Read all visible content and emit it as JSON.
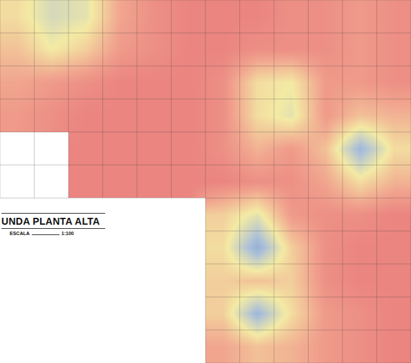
{
  "chart_data": {
    "type": "heatmap",
    "title": "UNDA PLANTA ALTA",
    "annotations": [
      "ESCALA",
      "1:100"
    ],
    "zlim": [
      0,
      100
    ],
    "colors": [
      "#e66f76",
      "#f1a58f",
      "#f3eaa4",
      "#a9bfd9",
      "#7f9dc8"
    ],
    "tick_labels": false,
    "cells": [
      [
        45,
        60,
        55,
        25,
        15,
        10,
        10,
        10,
        15,
        15,
        20,
        15
      ],
      [
        35,
        50,
        40,
        20,
        15,
        10,
        10,
        15,
        15,
        15,
        20,
        15
      ],
      [
        25,
        20,
        15,
        10,
        10,
        10,
        15,
        45,
        50,
        20,
        20,
        15
      ],
      [
        20,
        15,
        10,
        10,
        10,
        10,
        15,
        45,
        55,
        20,
        35,
        30
      ],
      [
        null,
        null,
        10,
        10,
        10,
        10,
        15,
        30,
        20,
        35,
        80,
        45
      ],
      [
        null,
        null,
        10,
        10,
        10,
        10,
        10,
        15,
        15,
        25,
        45,
        30
      ],
      [
        null,
        null,
        null,
        null,
        null,
        null,
        40,
        55,
        20,
        15,
        15,
        10
      ],
      [
        null,
        null,
        null,
        null,
        null,
        null,
        45,
        85,
        40,
        15,
        10,
        10
      ],
      [
        null,
        null,
        null,
        null,
        null,
        null,
        40,
        35,
        40,
        15,
        10,
        10
      ],
      [
        null,
        null,
        null,
        null,
        null,
        null,
        40,
        80,
        45,
        20,
        15,
        10
      ],
      [
        null,
        null,
        null,
        null,
        null,
        null,
        25,
        35,
        30,
        20,
        15,
        10
      ]
    ]
  }
}
